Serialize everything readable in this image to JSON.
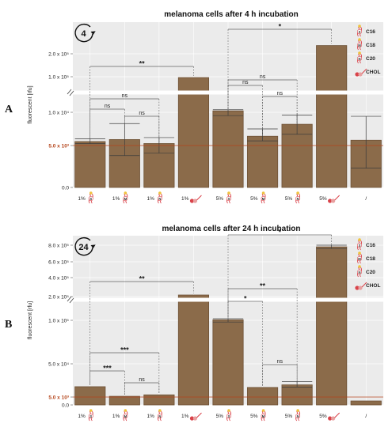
{
  "chart_data": [
    {
      "type": "bar",
      "panel": "A",
      "title": "melanoma cells after 4 h incubation",
      "ylabel": "fluorescent [rfu]",
      "badge": "4",
      "categories": [
        "1%",
        "1%",
        "1%",
        "1%",
        "5%",
        "5%",
        "5%",
        "5%",
        "/"
      ],
      "category_lipids": [
        "C16",
        "C18",
        "C20",
        "CHOL",
        "C16",
        "C18",
        "C20",
        "CHOL",
        ""
      ],
      "series": [
        {
          "values": [
            5600,
            5900,
            5300,
            95000,
            11500,
            6400,
            8200,
            220000,
            5800
          ],
          "err_low": [
            5300,
            3800,
            4100,
            null,
            9500,
            5700,
            6700,
            null,
            2300
          ],
          "err_high": [
            6000,
            8300,
            6200,
            null,
            12700,
            7500,
            9600,
            null,
            9400
          ]
        }
      ],
      "yticks": [
        "0.0",
        "5.0 x 10³",
        "1.0 x 10⁴",
        "1.0 x 10⁵",
        "2.0 x 10⁵"
      ],
      "reference_line": {
        "value": 5000,
        "label": "5.0 x 10³",
        "color": "#b5451b"
      },
      "annotations": [
        {
          "from": 1,
          "to": 4,
          "label": "**"
        },
        {
          "from": 1,
          "to": 3,
          "label": "ns"
        },
        {
          "from": 1,
          "to": 2,
          "label": "ns"
        },
        {
          "from": 2,
          "to": 3,
          "label": "ns"
        },
        {
          "from": 5,
          "to": 8,
          "label": "*"
        },
        {
          "from": 5,
          "to": 7,
          "label": "ns"
        },
        {
          "from": 5,
          "to": 6,
          "label": "ns"
        },
        {
          "from": 6,
          "to": 7,
          "label": "ns"
        }
      ],
      "legend": [
        "C16",
        "C18",
        "C20",
        "CHOL"
      ],
      "colors": {
        "bar": "#8b6b4a",
        "bar_edge": "#6e5236",
        "panel_bg": "#ebebeb",
        "reference": "#b5451b"
      }
    },
    {
      "type": "bar",
      "panel": "B",
      "title": "melanoma cells after 24 h incubation",
      "ylabel": "fluorescent [rfu]",
      "badge": "24",
      "categories": [
        "1%",
        "1%",
        "1%",
        "1%",
        "5%",
        "5%",
        "5%",
        "5%",
        "/"
      ],
      "category_lipids": [
        "C16",
        "C18",
        "C20",
        "CHOL",
        "C16",
        "C18",
        "C20",
        "CHOL",
        ""
      ],
      "series": [
        {
          "values": [
            19000,
            6000,
            8000,
            210000,
            104000,
            18000,
            21500,
            780000,
            2500
          ],
          "err_low": [
            null,
            null,
            null,
            null,
            98000,
            null,
            18500,
            760000,
            null
          ],
          "err_high": [
            null,
            null,
            null,
            null,
            112000,
            null,
            26000,
            800000,
            null
          ]
        }
      ],
      "yticks": [
        "0.0",
        "5.0 x 10³",
        "5.0 x 10⁴",
        "1.0 x 10⁵",
        "2.0 x 10⁵",
        "4.0 x 10⁵",
        "6.0 x 10⁵",
        "8.0 x 10⁵"
      ],
      "reference_line": {
        "value": 5000,
        "label": "5.0 x 10³",
        "color": "#b5451b"
      },
      "annotations": [
        {
          "from": 1,
          "to": 4,
          "label": "**"
        },
        {
          "from": 1,
          "to": 3,
          "label": "***"
        },
        {
          "from": 1,
          "to": 2,
          "label": "***"
        },
        {
          "from": 2,
          "to": 3,
          "label": "ns"
        },
        {
          "from": 5,
          "to": 8,
          "label": "*"
        },
        {
          "from": 5,
          "to": 7,
          "label": "**"
        },
        {
          "from": 5,
          "to": 6,
          "label": "*"
        },
        {
          "from": 6,
          "to": 7,
          "label": "ns"
        }
      ],
      "legend": [
        "C16",
        "C18",
        "C20",
        "CHOL"
      ],
      "colors": {
        "bar": "#8b6b4a",
        "bar_edge": "#6e5236",
        "panel_bg": "#ebebeb",
        "reference": "#b5451b"
      }
    }
  ]
}
